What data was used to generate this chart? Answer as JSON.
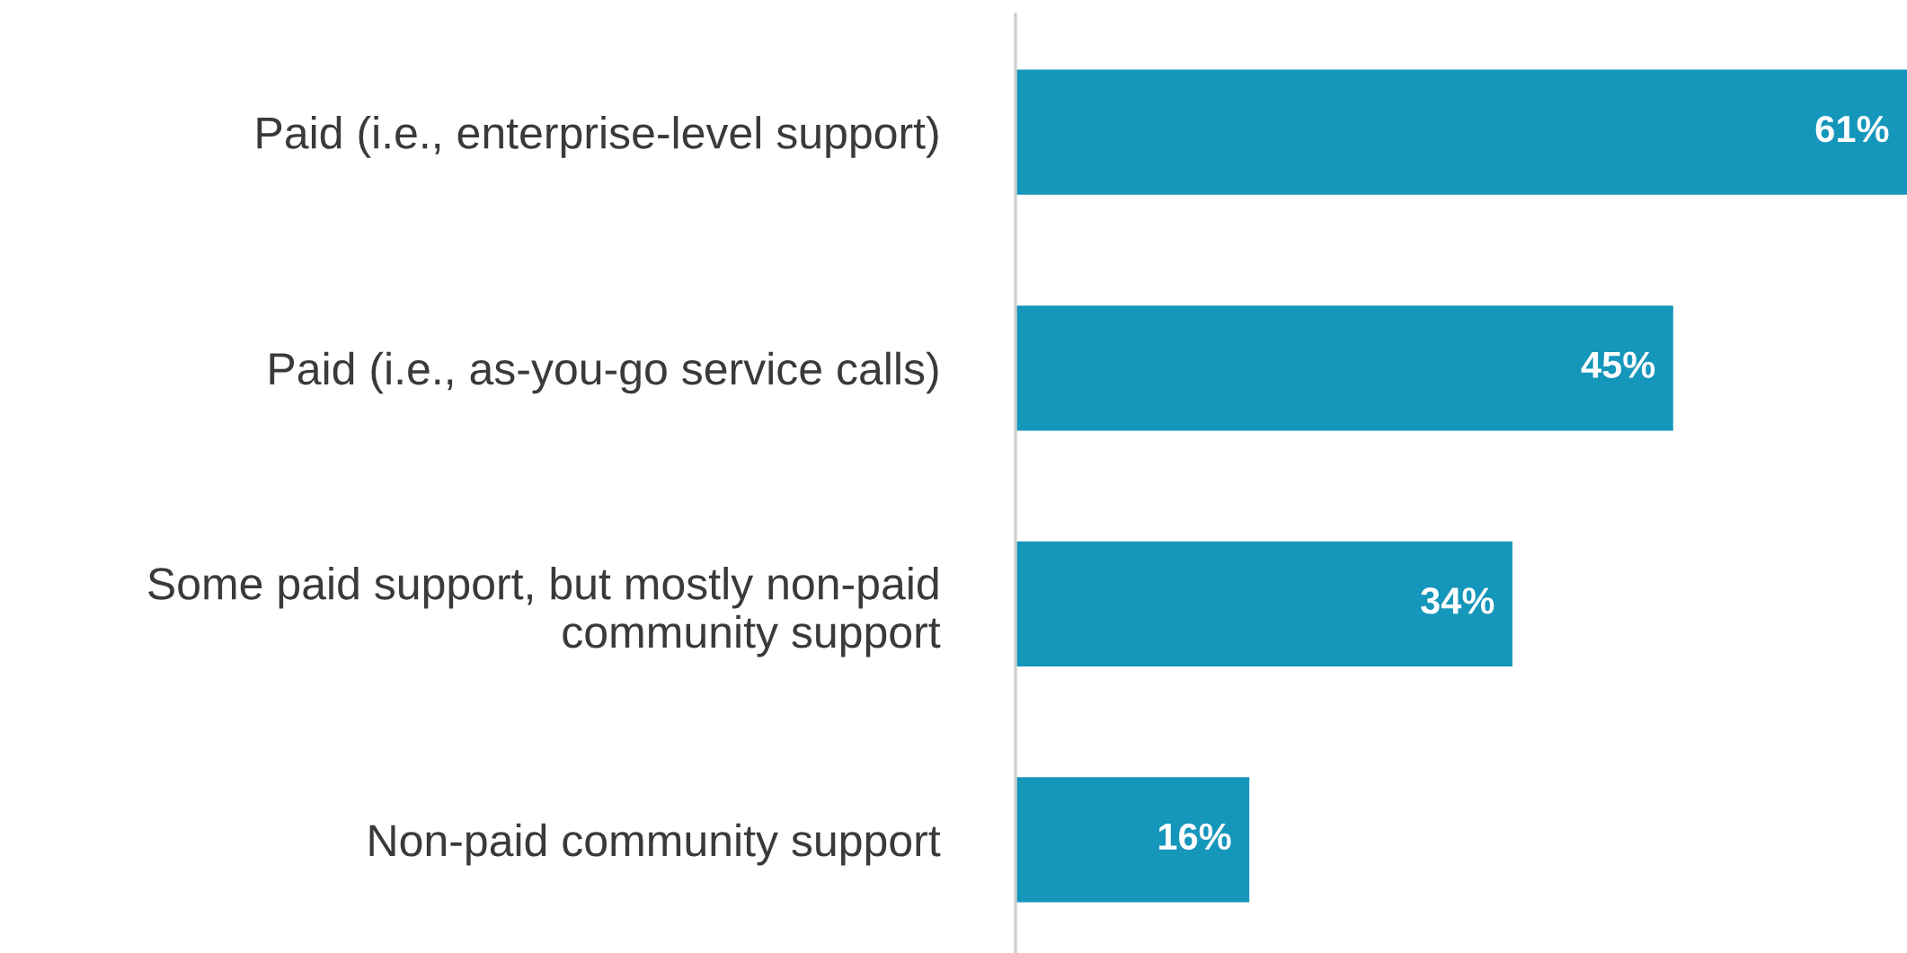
{
  "chart_data": {
    "type": "bar",
    "orientation": "horizontal",
    "categories": [
      "Paid (i.e., enterprise-level support)",
      "Paid (i.e., as-you-go service calls)",
      "Some paid support, but mostly non-paid\ncommunity support",
      "Non-paid community support"
    ],
    "values": [
      61,
      45,
      34,
      16
    ],
    "value_labels": [
      "61%",
      "45%",
      "34%",
      "16%"
    ],
    "color": "#1596bb",
    "grid": false,
    "legend": false
  }
}
